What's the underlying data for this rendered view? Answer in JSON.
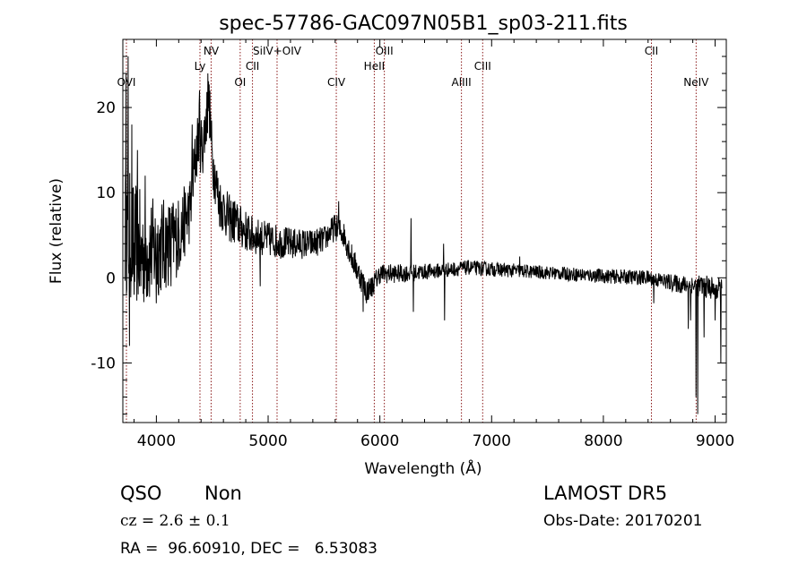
{
  "chart_data": {
    "type": "line",
    "title": "spec-57786-GAC097N05B1_sp03-211.fits",
    "xlabel": "Wavelength (Å)",
    "ylabel": "Flux (relative)",
    "xlim": [
      3700,
      9100
    ],
    "ylim": [
      -17,
      28
    ],
    "xticks": [
      4000,
      5000,
      6000,
      7000,
      8000,
      9000
    ],
    "yticks": [
      -10,
      0,
      10,
      20
    ],
    "grid": false,
    "line_color": "#000000",
    "marker_color": "#8b1a1a",
    "lines": [
      {
        "label": "OVI",
        "x": 3732,
        "row": 3
      },
      {
        "label": "Ly",
        "x": 4390,
        "row": 2
      },
      {
        "label": "NV",
        "x": 4490,
        "row": 1
      },
      {
        "label": "OI",
        "x": 4750,
        "row": 3
      },
      {
        "label": "CII",
        "x": 4860,
        "row": 2
      },
      {
        "label": "SiIV+OIV",
        "x": 5080,
        "row": 1
      },
      {
        "label": "CIV",
        "x": 5610,
        "row": 3
      },
      {
        "label": "HeII",
        "x": 5950,
        "row": 2
      },
      {
        "label": "OIII",
        "x": 6040,
        "row": 1
      },
      {
        "label": "AlIII",
        "x": 6730,
        "row": 3
      },
      {
        "label": "CIII",
        "x": 6920,
        "row": 2
      },
      {
        "label": "CII",
        "x": 8430,
        "row": 1
      },
      {
        "label": "NeIV",
        "x": 8830,
        "row": 3
      }
    ],
    "continuum": [
      [
        3720,
        6
      ],
      [
        3800,
        4
      ],
      [
        3900,
        3
      ],
      [
        4000,
        3.5
      ],
      [
        4100,
        4
      ],
      [
        4200,
        5
      ],
      [
        4300,
        8
      ],
      [
        4350,
        14
      ],
      [
        4380,
        17
      ],
      [
        4410,
        15
      ],
      [
        4440,
        18
      ],
      [
        4470,
        21
      ],
      [
        4500,
        14
      ],
      [
        4560,
        9
      ],
      [
        4650,
        7
      ],
      [
        4750,
        6
      ],
      [
        4850,
        5
      ],
      [
        5000,
        4.5
      ],
      [
        5200,
        4
      ],
      [
        5400,
        4
      ],
      [
        5500,
        4.5
      ],
      [
        5600,
        6
      ],
      [
        5680,
        5
      ],
      [
        5760,
        2
      ],
      [
        5830,
        0
      ],
      [
        5880,
        -1.5
      ],
      [
        5930,
        -1
      ],
      [
        6000,
        0.5
      ],
      [
        6200,
        0.5
      ],
      [
        6500,
        0.8
      ],
      [
        6800,
        1.2
      ],
      [
        7000,
        1
      ],
      [
        7500,
        0.6
      ],
      [
        8000,
        0.2
      ],
      [
        8400,
        0
      ],
      [
        8700,
        -0.8
      ],
      [
        8900,
        -1
      ],
      [
        9060,
        -1.5
      ]
    ],
    "noise": [
      [
        3700,
        8
      ],
      [
        4000,
        6
      ],
      [
        4300,
        4
      ],
      [
        4600,
        3
      ],
      [
        4900,
        2.2
      ],
      [
        5500,
        1.6
      ],
      [
        5800,
        1.6
      ],
      [
        6000,
        1.2
      ],
      [
        6500,
        0.9
      ],
      [
        7500,
        0.8
      ],
      [
        8500,
        0.9
      ],
      [
        8800,
        1.2
      ],
      [
        9060,
        1.5
      ]
    ],
    "spikes": [
      [
        3730,
        24
      ],
      [
        3748,
        26
      ],
      [
        3760,
        -8
      ],
      [
        3780,
        18
      ],
      [
        3800,
        -2
      ],
      [
        3830,
        15
      ],
      [
        3860,
        -1
      ],
      [
        3900,
        12
      ],
      [
        4000,
        -3
      ],
      [
        4130,
        -1
      ],
      [
        4320,
        18
      ],
      [
        4385,
        22
      ],
      [
        4460,
        24
      ],
      [
        4700,
        9
      ],
      [
        4930,
        -1
      ],
      [
        5630,
        9
      ],
      [
        5850,
        -4
      ],
      [
        5880,
        -3
      ],
      [
        6280,
        7
      ],
      [
        6300,
        -4
      ],
      [
        6570,
        4
      ],
      [
        6580,
        -5
      ],
      [
        7250,
        2.5
      ],
      [
        8450,
        -3
      ],
      [
        8760,
        -6
      ],
      [
        8780,
        -5
      ],
      [
        8830,
        -14
      ],
      [
        8845,
        -16
      ],
      [
        8900,
        -7
      ],
      [
        9000,
        -5
      ],
      [
        9050,
        -10
      ]
    ]
  },
  "info": {
    "class": "QSO",
    "subclass": "Non",
    "cz": "cz = 2.6 ± 0.1",
    "radec": "RA =  96.60910, DEC =   6.53083",
    "survey": "LAMOST DR5",
    "obsdate": "Obs-Date: 20170201"
  }
}
